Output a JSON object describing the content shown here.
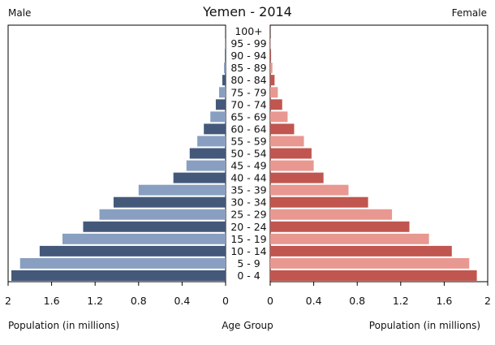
{
  "chart_data": {
    "type": "bar",
    "title": "Yemen - 2014",
    "left_label": "Male",
    "right_label": "Female",
    "xlabel_left": "Population (in millions)",
    "xlabel_center": "Age Group",
    "xlabel_right": "Population (in millions)",
    "categories": [
      "0 - 4",
      "5 - 9",
      "10 - 14",
      "15 - 19",
      "20 - 24",
      "25 - 29",
      "30 - 34",
      "35 - 39",
      "40 - 44",
      "45 - 49",
      "50 - 54",
      "55 - 59",
      "60 - 64",
      "65 - 69",
      "70 - 74",
      "75 - 79",
      "80 - 84",
      "85 - 89",
      "90 - 94",
      "95 - 99",
      "100+"
    ],
    "series": [
      {
        "name": "Male",
        "values": [
          1.97,
          1.89,
          1.71,
          1.5,
          1.31,
          1.16,
          1.03,
          0.8,
          0.48,
          0.36,
          0.33,
          0.26,
          0.2,
          0.14,
          0.09,
          0.06,
          0.03,
          0.015,
          0.006,
          0.002,
          0.001
        ]
      },
      {
        "name": "Female",
        "values": [
          1.9,
          1.83,
          1.67,
          1.46,
          1.28,
          1.12,
          0.9,
          0.72,
          0.49,
          0.4,
          0.38,
          0.31,
          0.22,
          0.16,
          0.11,
          0.07,
          0.04,
          0.02,
          0.008,
          0.003,
          0.001
        ]
      }
    ],
    "xlim": [
      0,
      2
    ],
    "xticks_left": [
      "2",
      "1.6",
      "1.2",
      "0.8",
      "0.4",
      "0"
    ],
    "xticks_right": [
      "0",
      "0.4",
      "0.8",
      "1.2",
      "1.6",
      "2"
    ],
    "colors": {
      "male_dark": "#44597a",
      "male_light": "#889fc1",
      "female_dark": "#c0564f",
      "female_light": "#e89891"
    }
  }
}
